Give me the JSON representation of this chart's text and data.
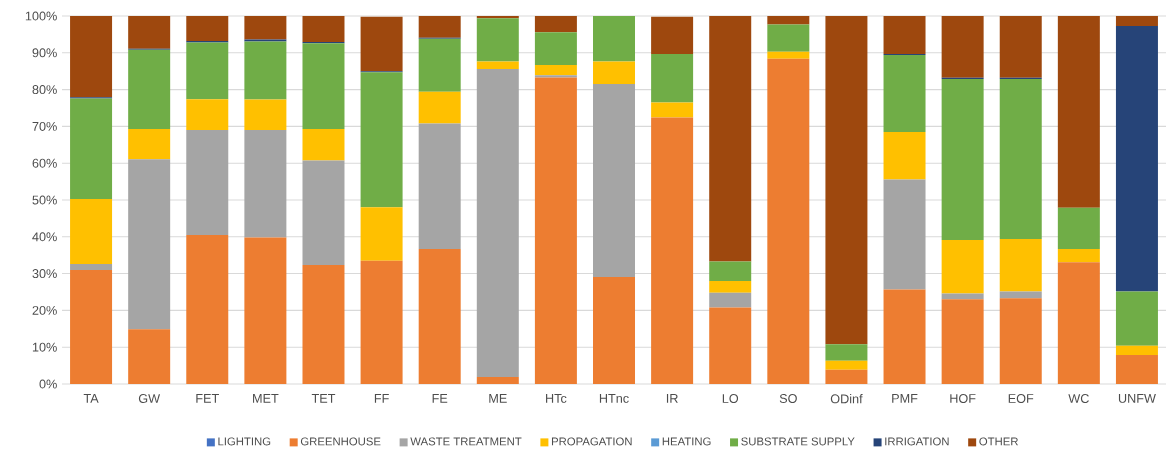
{
  "chart_data": {
    "type": "bar",
    "stacked": true,
    "categories": [
      "TA",
      "GW",
      "FET",
      "MET",
      "TET",
      "FF",
      "FE",
      "ME",
      "HTc",
      "HTnc",
      "IR",
      "LO",
      "SO",
      "ODinf",
      "PMF",
      "HOF",
      "EOF",
      "WC",
      "UNFW"
    ],
    "ylim": [
      0,
      100
    ],
    "yticks": [
      {
        "value": 0,
        "label": "0%"
      },
      {
        "value": 10,
        "label": "10%"
      },
      {
        "value": 20,
        "label": "20%"
      },
      {
        "value": 30,
        "label": "30%"
      },
      {
        "value": 40,
        "label": "40%"
      },
      {
        "value": 50,
        "label": "50%"
      },
      {
        "value": 60,
        "label": "60%"
      },
      {
        "value": 70,
        "label": "70%"
      },
      {
        "value": 80,
        "label": "80%"
      },
      {
        "value": 90,
        "label": "90%"
      },
      {
        "value": 100,
        "label": "100%"
      }
    ],
    "grid": "y",
    "legend": "bottom",
    "series": [
      {
        "name": "LIGHTING",
        "color": "#4472c4",
        "values": [
          0,
          0,
          0,
          0,
          0,
          0,
          0,
          0,
          0,
          0,
          0,
          0,
          0,
          0,
          0,
          0,
          0,
          0,
          0
        ]
      },
      {
        "name": "GREENHOUSE",
        "color": "#ed7d31",
        "values": [
          31.0,
          14.9,
          40.5,
          39.8,
          32.3,
          33.5,
          36.7,
          1.9,
          83.3,
          29.1,
          72.4,
          20.8,
          88.4,
          3.9,
          25.7,
          23.0,
          23.3,
          33.1,
          7.9
        ]
      },
      {
        "name": "WASTE TREATMENT",
        "color": "#a5a5a5",
        "values": [
          1.6,
          46.2,
          28.5,
          29.2,
          28.4,
          null,
          34.1,
          83.7,
          0.6,
          52.4,
          null,
          4.0,
          0,
          0,
          29.9,
          1.6,
          1.8,
          0,
          0
        ]
      },
      {
        "name": "PROPAGATION",
        "color": "#ffc000",
        "values": [
          17.7,
          8.2,
          8.4,
          8.3,
          8.6,
          14.5,
          8.6,
          2.0,
          2.8,
          6.1,
          4.1,
          3.2,
          1.9,
          2.4,
          12.9,
          14.5,
          14.3,
          3.6,
          2.5
        ]
      },
      {
        "name": "HEATING",
        "color": "#5b9bd5",
        "values": [
          0,
          0,
          0,
          0,
          0,
          0,
          0,
          0,
          0,
          0,
          0,
          0,
          0,
          0,
          0,
          0,
          0,
          0,
          0
        ]
      },
      {
        "name": "SUBSTRATE SUPPLY",
        "color": "#70ad47",
        "values": [
          27.3,
          21.5,
          15.4,
          15.8,
          23.3,
          36.7,
          14.4,
          11.8,
          8.9,
          12.4,
          13.2,
          5.3,
          7.4,
          4.5,
          20.9,
          43.8,
          43.5,
          11.2,
          14.7
        ]
      },
      {
        "name": "IRRIGATION",
        "color": "#264478",
        "values": [
          0.3,
          0.3,
          0.4,
          0.5,
          0.3,
          0.3,
          0.3,
          0,
          0,
          0,
          0,
          0,
          0,
          0,
          0.3,
          0.3,
          0.3,
          0,
          72.2
        ]
      },
      {
        "name": "OTHER",
        "color": "#9e480e",
        "values": [
          22.1,
          8.9,
          6.8,
          6.4,
          7.1,
          14.8,
          5.9,
          0.6,
          4.4,
          0,
          10.1,
          66.7,
          2.3,
          89.2,
          10.3,
          16.8,
          16.8,
          52.1,
          2.7
        ]
      }
    ]
  }
}
